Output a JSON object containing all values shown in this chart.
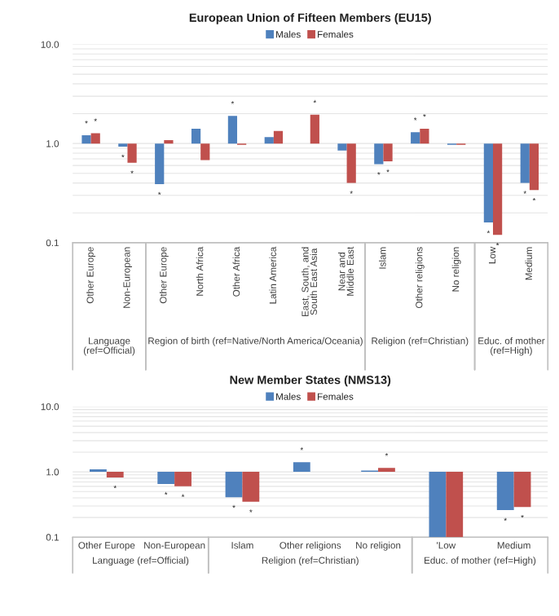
{
  "chart_data": [
    {
      "type": "bar",
      "title": "European Union of Fifteen Members (EU15)",
      "categories": [
        "Other Europe",
        "Non-European",
        "Other Europe",
        "North Africa",
        "Other Africa",
        "Latin America",
        "East, South, and South East Asia",
        "Near and Middle East",
        "Islam",
        "Other religions",
        "No religion",
        "Low",
        "Medium"
      ],
      "series": [
        {
          "name": "Males",
          "color": "#4f81bd",
          "base": [
            1,
            1,
            1,
            1,
            1,
            1,
            null,
            1,
            1,
            1,
            1,
            1,
            1
          ],
          "values": [
            0.21,
            -0.07,
            -0.61,
            0.41,
            0.9,
            0.16,
            null,
            -0.15,
            -0.38,
            0.3,
            -0.03,
            -0.84,
            -0.6
          ],
          "value_labels": [
            "*",
            "*",
            "*",
            null,
            "*",
            null,
            null,
            null,
            "*",
            "*",
            null,
            "*",
            "*"
          ]
        },
        {
          "name": "Females",
          "color": "#c0504d",
          "base": [
            1,
            1,
            1,
            1,
            1,
            1,
            1,
            1,
            1,
            1,
            1,
            1,
            1
          ],
          "values": [
            0.27,
            -0.36,
            0.08,
            -0.32,
            -0.03,
            0.34,
            0.95,
            -0.6,
            -0.34,
            0.41,
            -0.03,
            -0.88,
            -0.66
          ],
          "value_labels": [
            "*",
            "*",
            null,
            null,
            null,
            null,
            "*",
            "*",
            "*",
            "*",
            null,
            "*",
            "*"
          ]
        }
      ],
      "log": "y",
      "ylim": [
        0.1,
        10
      ],
      "yticks": [
        {
          "value": 0.1,
          "label": "0.1"
        },
        {
          "value": 1,
          "label": "1.0"
        },
        {
          "value": 10,
          "label": "10.0"
        }
      ],
      "grid": "y",
      "legend": "top",
      "annotations": [
        "Language (ref=Official)",
        "Region of birth (ref=Native/North America/Oceania)",
        "Religion (ref=Christian)",
        "Educ. of mother (ref=High)"
      ]
    },
    {
      "type": "bar",
      "title": "New Member States (NMS13)",
      "categories": [
        "Other Europe",
        "Non-European",
        "Islam",
        "Other religions",
        "No religion",
        "'Low",
        "Medium"
      ],
      "series": [
        {
          "name": "Males",
          "color": "#4f81bd",
          "base": [
            1,
            1,
            1,
            1,
            1,
            1,
            1
          ],
          "values": [
            0.09,
            -0.35,
            -0.59,
            0.41,
            0.05,
            -0.9,
            -0.74
          ],
          "value_labels": [
            null,
            "*",
            "*",
            "*",
            null,
            null,
            "*"
          ]
        },
        {
          "name": "Females",
          "color": "#c0504d",
          "base": [
            1,
            1,
            1,
            null,
            1,
            1,
            1
          ],
          "values": [
            -0.18,
            -0.4,
            -0.65,
            null,
            0.15,
            -0.9,
            -0.71
          ],
          "value_labels": [
            "*",
            "*",
            "*",
            null,
            "*",
            null,
            "*"
          ]
        }
      ],
      "log": "y",
      "ylim": [
        0.1,
        10
      ],
      "yticks": [
        {
          "value": 0.1,
          "label": "0.1"
        },
        {
          "value": 1,
          "label": "1.0"
        },
        {
          "value": 10,
          "label": "10.0"
        }
      ],
      "grid": "y",
      "legend": "top",
      "annotations": [
        "Language (ref=Official)",
        "Religion (ref=Christian)",
        "Educ. of mother (ref=High)"
      ]
    }
  ]
}
